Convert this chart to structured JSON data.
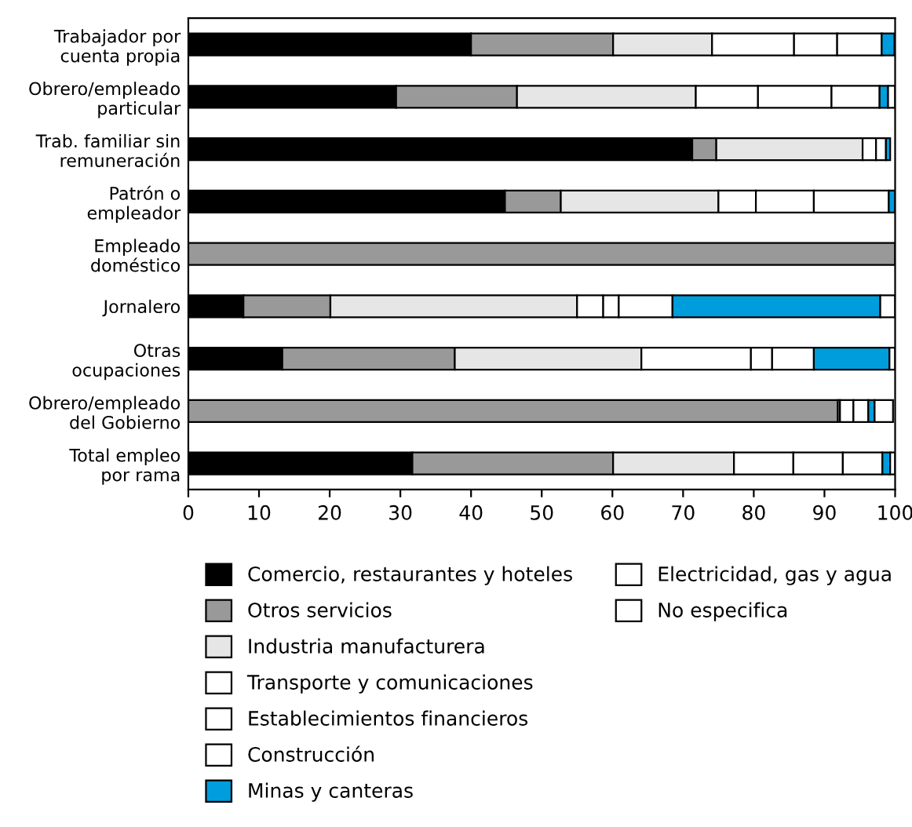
{
  "chart_data": {
    "type": "bar",
    "orientation": "horizontal",
    "stacked": true,
    "categories": [
      "Trabajador por\ncuenta propia",
      "Obrero/empleado\nparticular",
      "Trab. familiar sin\nremuneración",
      "Patrón o\nempleador",
      "Empleado\ndoméstico",
      "Jornalero",
      "Otras\nocupaciones",
      "Obrero/empleado\ndel Gobierno",
      "Total empleo\npor rama"
    ],
    "series": [
      {
        "name": "Comercio, restaurantes y hoteles",
        "color": "#000000",
        "values": [
          40.0,
          29.4,
          71.3,
          44.8,
          null,
          7.8,
          13.3,
          null,
          31.7
        ]
      },
      {
        "name": "Otros servicios",
        "color": "#999999",
        "values": [
          20.1,
          17.1,
          3.4,
          7.9,
          100,
          12.3,
          24.4,
          91.9,
          28.4
        ]
      },
      {
        "name": "Industria manufacturera",
        "color": "#e6e6e6",
        "values": [
          14.0,
          25.3,
          20.7,
          22.3,
          null,
          34.9,
          26.4,
          0.3,
          17.1
        ]
      },
      {
        "name": "Transporte y comunicaciones",
        "color": "#ffffff",
        "values": [
          11.6,
          8.8,
          1.9,
          5.3,
          null,
          3.7,
          15.5,
          1.9,
          8.4
        ]
      },
      {
        "name": "Establecimientos financieros",
        "color": "#ffffff",
        "values": [
          6.1,
          10.4,
          null,
          8.2,
          null,
          2.2,
          3.0,
          2.1,
          7.0
        ]
      },
      {
        "name": "Construcción",
        "color": "#ffffff",
        "values": [
          6.3,
          6.8,
          1.4,
          10.6,
          null,
          7.6,
          5.9,
          null,
          5.6
        ]
      },
      {
        "name": "Minas y canteras",
        "color": "#009ddc",
        "values": [
          1.8,
          1.2,
          0.6,
          0.9,
          null,
          29.4,
          10.7,
          0.9,
          1.1
        ]
      },
      {
        "name": "Electricidad, gas y agua",
        "color": "#ffffff",
        "values": [
          null,
          1.0,
          null,
          null,
          null,
          null,
          0.8,
          2.6,
          0.7
        ]
      },
      {
        "name": "No especifica",
        "color": "#ffffff",
        "values": [
          null,
          null,
          null,
          null,
          null,
          2.1,
          null,
          null,
          null
        ]
      }
    ],
    "xlim": [
      0,
      100
    ],
    "xticks": [
      0,
      10,
      20,
      30,
      40,
      50,
      60,
      70,
      80,
      90,
      100
    ],
    "grid": false,
    "legend": "bottom"
  }
}
